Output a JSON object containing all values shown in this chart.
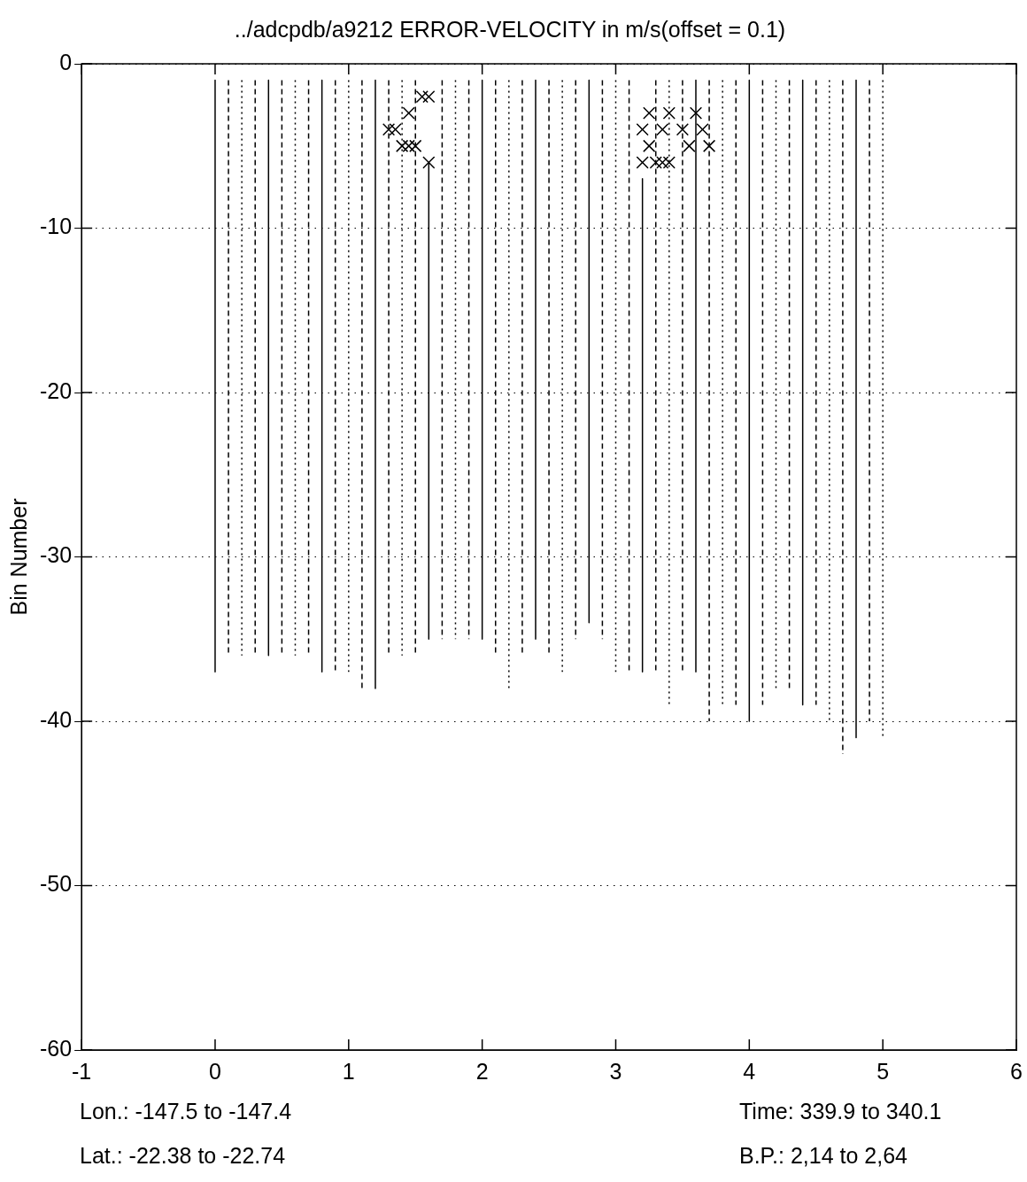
{
  "chart_data": {
    "type": "line",
    "title": "../adcpdb/a9212 ERROR-VELOCITY in m/s(offset = 0.1)",
    "ylabel": "Bin Number",
    "xlim": [
      -1,
      6
    ],
    "xticks": [
      -1,
      0,
      1,
      2,
      3,
      4,
      5,
      6
    ],
    "ylim": [
      -60,
      0
    ],
    "yticks": [
      -60,
      -50,
      -40,
      -30,
      -20,
      -10,
      0
    ],
    "grid": "y",
    "legend": false,
    "annotations": [
      "Lon.: -147.5 to -147.4",
      "Time: 339.9 to 340.1",
      "Lat.: -22.38 to -22.74",
      "B.P.: 2,14 to 2,64"
    ],
    "series": [
      {
        "color": "#000000",
        "line_style": "solid",
        "x": [
          0,
          0
        ],
        "values": [
          -1,
          -37
        ]
      },
      {
        "color": "#000000",
        "line_style": "dashed",
        "x": [
          0.1,
          0.1
        ],
        "values": [
          -1,
          -36
        ]
      },
      {
        "color": "#000000",
        "line_style": "dotted",
        "x": [
          0.2,
          0.2
        ],
        "values": [
          -1,
          -36
        ]
      },
      {
        "color": "#000000",
        "line_style": "dashed",
        "x": [
          0.3,
          0.3
        ],
        "values": [
          -1,
          -36
        ]
      },
      {
        "color": "#000000",
        "line_style": "solid",
        "x": [
          0.4,
          0.4
        ],
        "values": [
          -1,
          -36
        ]
      },
      {
        "color": "#000000",
        "line_style": "dashed",
        "x": [
          0.5,
          0.5
        ],
        "values": [
          -1,
          -36
        ]
      },
      {
        "color": "#000000",
        "line_style": "dotted",
        "x": [
          0.6,
          0.6
        ],
        "values": [
          -1,
          -36
        ]
      },
      {
        "color": "#000000",
        "line_style": "dashed",
        "x": [
          0.7,
          0.7
        ],
        "values": [
          -1,
          -36
        ]
      },
      {
        "color": "#000000",
        "line_style": "solid",
        "x": [
          0.8,
          0.8
        ],
        "values": [
          -1,
          -37
        ]
      },
      {
        "color": "#000000",
        "line_style": "dashed",
        "x": [
          0.9,
          0.9
        ],
        "values": [
          -1,
          -37
        ]
      },
      {
        "color": "#000000",
        "line_style": "dotted",
        "x": [
          1,
          1
        ],
        "values": [
          -1,
          -37
        ]
      },
      {
        "color": "#000000",
        "line_style": "dashed",
        "x": [
          1.1,
          1.1
        ],
        "values": [
          -1,
          -38
        ]
      },
      {
        "color": "#000000",
        "line_style": "solid",
        "x": [
          1.2,
          1.2
        ],
        "values": [
          -1,
          -38
        ]
      },
      {
        "color": "#000000",
        "line_style": "dashed",
        "x": [
          1.3,
          1.3
        ],
        "values": [
          -1,
          -36
        ]
      },
      {
        "color": "#000000",
        "line_style": "dotted",
        "x": [
          1.4,
          1.4
        ],
        "values": [
          -1,
          -36
        ]
      },
      {
        "color": "#000000",
        "line_style": "dashed",
        "x": [
          1.5,
          1.5
        ],
        "values": [
          -1,
          -36
        ]
      },
      {
        "color": "#000000",
        "line_style": "solid",
        "x": [
          1.6,
          1.6
        ],
        "values": [
          -6,
          -35
        ]
      },
      {
        "color": "#000000",
        "line_style": "dashed",
        "x": [
          1.7,
          1.7
        ],
        "values": [
          -1,
          -35
        ]
      },
      {
        "color": "#000000",
        "line_style": "dotted",
        "x": [
          1.8,
          1.8
        ],
        "values": [
          -1,
          -35
        ]
      },
      {
        "color": "#000000",
        "line_style": "dashed",
        "x": [
          1.9,
          1.9
        ],
        "values": [
          -1,
          -35
        ]
      },
      {
        "color": "#000000",
        "line_style": "solid",
        "x": [
          2,
          2
        ],
        "values": [
          -1,
          -35
        ]
      },
      {
        "color": "#000000",
        "line_style": "dashed",
        "x": [
          2.1,
          2.1
        ],
        "values": [
          -1,
          -36
        ]
      },
      {
        "color": "#000000",
        "line_style": "dotted",
        "x": [
          2.2,
          2.2
        ],
        "values": [
          -1,
          -38
        ]
      },
      {
        "color": "#000000",
        "line_style": "dashed",
        "x": [
          2.3,
          2.3
        ],
        "values": [
          -1,
          -36
        ]
      },
      {
        "color": "#000000",
        "line_style": "solid",
        "x": [
          2.4,
          2.4
        ],
        "values": [
          -1,
          -35
        ]
      },
      {
        "color": "#000000",
        "line_style": "dashed",
        "x": [
          2.5,
          2.5
        ],
        "values": [
          -1,
          -36
        ]
      },
      {
        "color": "#000000",
        "line_style": "dotted",
        "x": [
          2.6,
          2.6
        ],
        "values": [
          -1,
          -37
        ]
      },
      {
        "color": "#000000",
        "line_style": "dashed",
        "x": [
          2.7,
          2.7
        ],
        "values": [
          -1,
          -35
        ]
      },
      {
        "color": "#000000",
        "line_style": "solid",
        "x": [
          2.8,
          2.8
        ],
        "values": [
          -1,
          -34
        ]
      },
      {
        "color": "#000000",
        "line_style": "dashed",
        "x": [
          2.9,
          2.9
        ],
        "values": [
          -1,
          -35
        ]
      },
      {
        "color": "#000000",
        "line_style": "dotted",
        "x": [
          3,
          3
        ],
        "values": [
          -1,
          -37
        ]
      },
      {
        "color": "#000000",
        "line_style": "dashed",
        "x": [
          3.1,
          3.1
        ],
        "values": [
          -1,
          -37
        ]
      },
      {
        "color": "#000000",
        "line_style": "solid",
        "x": [
          3.2,
          3.2
        ],
        "values": [
          -7,
          -37
        ]
      },
      {
        "color": "#000000",
        "line_style": "dashed",
        "x": [
          3.3,
          3.3
        ],
        "values": [
          -1,
          -37
        ]
      },
      {
        "color": "#000000",
        "line_style": "dotted",
        "x": [
          3.4,
          3.4
        ],
        "values": [
          -1,
          -39
        ]
      },
      {
        "color": "#000000",
        "line_style": "dashed",
        "x": [
          3.5,
          3.5
        ],
        "values": [
          -1,
          -37
        ]
      },
      {
        "color": "#000000",
        "line_style": "solid",
        "x": [
          3.6,
          3.6
        ],
        "values": [
          -1,
          -37
        ]
      },
      {
        "color": "#000000",
        "line_style": "dashed",
        "x": [
          3.7,
          3.7
        ],
        "values": [
          -1,
          -40
        ]
      },
      {
        "color": "#000000",
        "line_style": "dotted",
        "x": [
          3.8,
          3.8
        ],
        "values": [
          -1,
          -39
        ]
      },
      {
        "color": "#000000",
        "line_style": "dashed",
        "x": [
          3.9,
          3.9
        ],
        "values": [
          -1,
          -39
        ]
      },
      {
        "color": "#000000",
        "line_style": "solid",
        "x": [
          4,
          4
        ],
        "values": [
          -1,
          -40
        ]
      },
      {
        "color": "#000000",
        "line_style": "dashed",
        "x": [
          4.1,
          4.1
        ],
        "values": [
          -1,
          -39
        ]
      },
      {
        "color": "#000000",
        "line_style": "dotted",
        "x": [
          4.2,
          4.2
        ],
        "values": [
          -1,
          -38
        ]
      },
      {
        "color": "#000000",
        "line_style": "dashed",
        "x": [
          4.3,
          4.3
        ],
        "values": [
          -1,
          -38
        ]
      },
      {
        "color": "#000000",
        "line_style": "solid",
        "x": [
          4.4,
          4.4
        ],
        "values": [
          -1,
          -39
        ]
      },
      {
        "color": "#000000",
        "line_style": "dashed",
        "x": [
          4.5,
          4.5
        ],
        "values": [
          -1,
          -39
        ]
      },
      {
        "color": "#000000",
        "line_style": "dotted",
        "x": [
          4.6,
          4.6
        ],
        "values": [
          -1,
          -40
        ]
      },
      {
        "color": "#000000",
        "line_style": "dashed",
        "x": [
          4.7,
          4.7
        ],
        "values": [
          -1,
          -42
        ]
      },
      {
        "color": "#000000",
        "line_style": "solid",
        "x": [
          4.8,
          4.8
        ],
        "values": [
          -1,
          -41
        ]
      },
      {
        "color": "#000000",
        "line_style": "dashed",
        "x": [
          4.9,
          4.9
        ],
        "values": [
          -1,
          -40
        ]
      },
      {
        "color": "#000000",
        "line_style": "dotted",
        "x": [
          5,
          5
        ],
        "values": [
          -1,
          -41
        ]
      },
      {
        "type": "scatter",
        "color": "#000000",
        "marker": "cross",
        "x": [
          1.45,
          1.55,
          1.6,
          1.35,
          1.3,
          1.4,
          1.45,
          1.5,
          1.6
        ],
        "values": [
          -3,
          -2,
          -2,
          -4,
          -4,
          -5,
          -5,
          -5,
          -6
        ]
      },
      {
        "type": "scatter",
        "color": "#000000",
        "marker": "cross",
        "x": [
          3.25,
          3.35,
          3.4,
          3.5,
          3.6,
          3.55,
          3.2,
          3.3,
          3.35,
          3.4,
          3.65,
          3.7,
          3.2,
          3.25
        ],
        "values": [
          -3,
          -4,
          -3,
          -4,
          -3,
          -5,
          -6,
          -6,
          -6,
          -6,
          -4,
          -5,
          -4,
          -5
        ]
      }
    ]
  }
}
